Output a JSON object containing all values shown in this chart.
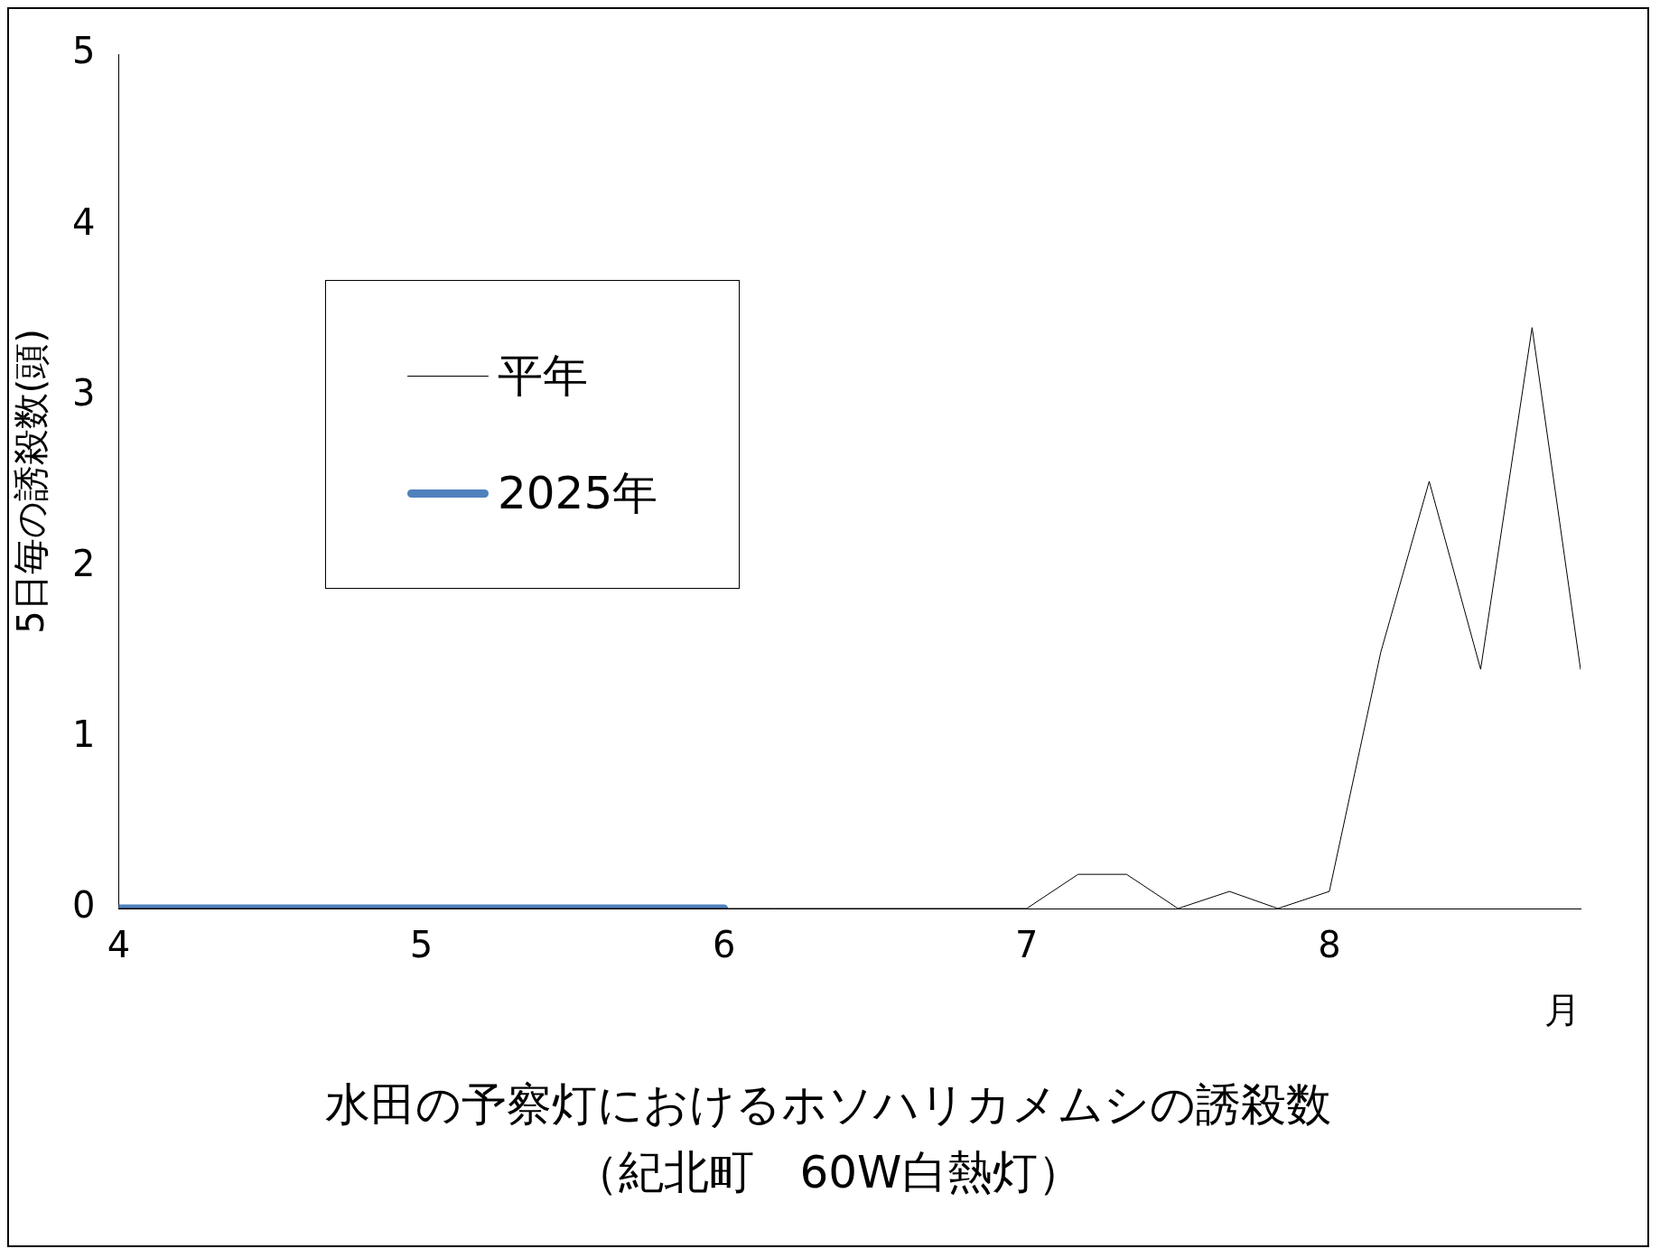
{
  "chart_data": {
    "type": "line",
    "title": "水田の予察灯におけるホソハリカメムシの誘殺数",
    "subtitle": "（紀北町　60W白熱灯）",
    "xlabel": "月",
    "ylabel": "5日毎の誘殺数(頭)",
    "xlim": [
      4,
      8.83
    ],
    "xticks": [
      4,
      5,
      6,
      7,
      8
    ],
    "ylim": [
      0,
      5
    ],
    "yticks": [
      0,
      1,
      2,
      3,
      4,
      5
    ],
    "grid": false,
    "legend": "top left",
    "marker": "none",
    "series": [
      {
        "name": "平年",
        "color": "#000000",
        "x": [
          4,
          4.17,
          4.33,
          4.5,
          4.67,
          4.83,
          5,
          5.17,
          5.33,
          5.5,
          5.67,
          5.83,
          6,
          6.17,
          6.33,
          6.5,
          6.67,
          6.83,
          7,
          7.17,
          7.33,
          7.5,
          7.67,
          7.83,
          8,
          8.17,
          8.33,
          8.5,
          8.67,
          8.83
        ],
        "values": [
          0,
          0,
          0,
          0,
          0,
          0,
          0,
          0,
          0,
          0,
          0,
          0,
          0,
          0,
          0,
          0,
          0,
          0,
          0,
          0.2,
          0.2,
          0,
          0.1,
          0,
          0.1,
          1.5,
          2.5,
          1.4,
          3.4,
          1.4
        ]
      },
      {
        "name": "2025年",
        "color": "#4f81bd",
        "x": [
          4,
          4.17,
          4.33,
          4.5,
          4.67,
          4.83,
          5,
          5.17,
          5.33,
          5.5,
          5.67,
          5.83,
          6
        ],
        "values": [
          0,
          0,
          0,
          0,
          0,
          0,
          0,
          0,
          0,
          0,
          0,
          0,
          0
        ]
      }
    ]
  }
}
